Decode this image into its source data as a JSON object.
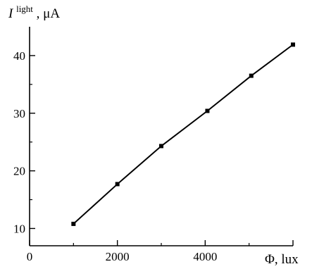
{
  "chart_data": {
    "type": "line",
    "title": "",
    "xlabel": "Φ, lux",
    "ylabel": {
      "symbol": "I",
      "superscript": "light",
      "unit": ", μA"
    },
    "xlim": [
      0,
      5200
    ],
    "ylim": [
      7,
      45
    ],
    "xticks": [
      0,
      2000,
      4000
    ],
    "xminor_ticks": [
      1000,
      3000,
      5000
    ],
    "yticks": [
      10,
      20,
      30,
      40
    ],
    "yminor_ticks": [
      15,
      25,
      35
    ],
    "grid": false,
    "series": [
      {
        "x": [
          1000,
          2000,
          3000,
          4050,
          5050,
          6000
        ],
        "y": [
          10.8,
          17.7,
          24.3,
          30.4,
          36.5,
          41.9
        ],
        "marker": "square",
        "color": "#000000"
      }
    ]
  }
}
